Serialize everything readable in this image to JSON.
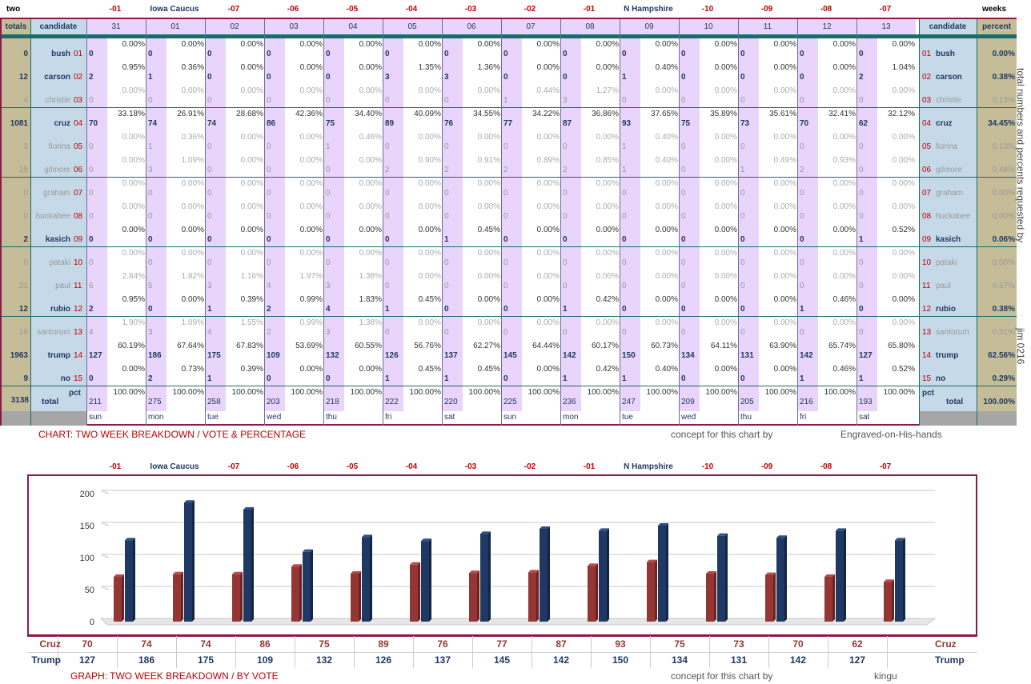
{
  "top_left": "two",
  "top_right": "weeks",
  "col_header_labels": [
    "-01",
    "Iowa Caucus",
    "-07",
    "-06",
    "-05",
    "-04",
    "-03",
    "-02",
    "-01",
    "N Hampshire",
    "-10",
    "-09",
    "-08",
    "-07"
  ],
  "header": {
    "totals": "totals",
    "candidate": "candidate",
    "days": [
      "31",
      "01",
      "02",
      "03",
      "04",
      "05",
      "06",
      "07",
      "08",
      "09",
      "10",
      "11",
      "12",
      "13"
    ],
    "candidate_r": "candidate",
    "percent": "percent"
  },
  "candidates": [
    {
      "name": "bush",
      "num": "01",
      "total": "0",
      "pct": "0.00%",
      "dim": false,
      "counts": [
        "0",
        "0",
        "0",
        "0",
        "0",
        "0",
        "0",
        "0",
        "0",
        "0",
        "0",
        "0",
        "0",
        "0"
      ],
      "pcts": [
        "0.00%",
        "0.00%",
        "0.00%",
        "0.00%",
        "0.00%",
        "0.00%",
        "0.00%",
        "0.00%",
        "0.00%",
        "0.00%",
        "0.00%",
        "0.00%",
        "0.00%",
        "0.00%"
      ]
    },
    {
      "name": "carson",
      "num": "02",
      "total": "12",
      "pct": "0.38%",
      "dim": false,
      "counts": [
        "2",
        "1",
        "0",
        "0",
        "0",
        "3",
        "3",
        "0",
        "0",
        "1",
        "0",
        "0",
        "0",
        "2"
      ],
      "pcts": [
        "0.95%",
        "0.36%",
        "0.00%",
        "0.00%",
        "0.00%",
        "1.35%",
        "1.36%",
        "0.00%",
        "0.00%",
        "0.40%",
        "0.00%",
        "0.00%",
        "0.00%",
        "1.04%"
      ]
    },
    {
      "name": "christie",
      "num": "03",
      "total": "4",
      "pct": "0.13%",
      "dim": true,
      "counts": [
        "0",
        "0",
        "0",
        "0",
        "0",
        "0",
        "0",
        "1",
        "3",
        "0",
        "0",
        "0",
        "0",
        "0"
      ],
      "pcts": [
        "0.00%",
        "0.00%",
        "0.00%",
        "0.00%",
        "0.00%",
        "0.00%",
        "0.00%",
        "0.44%",
        "1.27%",
        "0.00%",
        "0.00%",
        "0.00%",
        "0.00%",
        "0.00%"
      ]
    },
    {
      "name": "cruz",
      "num": "04",
      "total": "1081",
      "pct": "34.45%",
      "dim": false,
      "counts": [
        "70",
        "74",
        "74",
        "86",
        "75",
        "89",
        "76",
        "77",
        "87",
        "93",
        "75",
        "73",
        "70",
        "62"
      ],
      "pcts": [
        "33.18%",
        "26.91%",
        "28.68%",
        "42.36%",
        "34.40%",
        "40.09%",
        "34.55%",
        "34.22%",
        "36.86%",
        "37.65%",
        "35.89%",
        "35.61%",
        "32.41%",
        "32.12%"
      ]
    },
    {
      "name": "fiorina",
      "num": "05",
      "total": "3",
      "pct": "0.10%",
      "dim": true,
      "counts": [
        "0",
        "1",
        "0",
        "0",
        "1",
        "0",
        "0",
        "0",
        "0",
        "1",
        "0",
        "0",
        "0",
        "0"
      ],
      "pcts": [
        "0.00%",
        "0.36%",
        "0.00%",
        "0.00%",
        "0.46%",
        "0.00%",
        "0.00%",
        "0.00%",
        "0.00%",
        "0.40%",
        "0.00%",
        "0.00%",
        "0.00%",
        "0.00%"
      ]
    },
    {
      "name": "gilmore",
      "num": "06",
      "total": "15",
      "pct": "0.48%",
      "dim": true,
      "counts": [
        "0",
        "3",
        "0",
        "0",
        "0",
        "2",
        "2",
        "2",
        "2",
        "1",
        "0",
        "1",
        "2",
        "0"
      ],
      "pcts": [
        "0.00%",
        "1.09%",
        "0.00%",
        "0.00%",
        "0.00%",
        "0.90%",
        "0.91%",
        "0.89%",
        "0.85%",
        "0.40%",
        "0.00%",
        "0.49%",
        "0.93%",
        "0.00%"
      ]
    },
    {
      "name": "graham",
      "num": "07",
      "total": "0",
      "pct": "0.00%",
      "dim": true,
      "counts": [
        "0",
        "0",
        "0",
        "0",
        "0",
        "0",
        "0",
        "0",
        "0",
        "0",
        "0",
        "0",
        "0",
        "0"
      ],
      "pcts": [
        "0.00%",
        "0.00%",
        "0.00%",
        "0.00%",
        "0.00%",
        "0.00%",
        "0.00%",
        "0.00%",
        "0.00%",
        "0.00%",
        "0.00%",
        "0.00%",
        "0.00%",
        "0.00%"
      ]
    },
    {
      "name": "huckabee",
      "num": "08",
      "total": "0",
      "pct": "0.00%",
      "dim": true,
      "counts": [
        "0",
        "0",
        "0",
        "0",
        "0",
        "0",
        "0",
        "0",
        "0",
        "0",
        "0",
        "0",
        "0",
        "0"
      ],
      "pcts": [
        "0.00%",
        "0.00%",
        "0.00%",
        "0.00%",
        "0.00%",
        "0.00%",
        "0.00%",
        "0.00%",
        "0.00%",
        "0.00%",
        "0.00%",
        "0.00%",
        "0.00%",
        "0.00%"
      ]
    },
    {
      "name": "kasich",
      "num": "09",
      "total": "2",
      "pct": "0.06%",
      "dim": false,
      "counts": [
        "0",
        "0",
        "0",
        "0",
        "0",
        "0",
        "1",
        "0",
        "0",
        "0",
        "0",
        "0",
        "0",
        "1"
      ],
      "pcts": [
        "0.00%",
        "0.00%",
        "0.00%",
        "0.00%",
        "0.00%",
        "0.00%",
        "0.45%",
        "0.00%",
        "0.00%",
        "0.00%",
        "0.00%",
        "0.00%",
        "0.00%",
        "0.52%"
      ]
    },
    {
      "name": "pataki",
      "num": "10",
      "total": "0",
      "pct": "0.00%",
      "dim": true,
      "counts": [
        "0",
        "0",
        "0",
        "0",
        "0",
        "0",
        "0",
        "0",
        "0",
        "0",
        "0",
        "0",
        "0",
        "0"
      ],
      "pcts": [
        "0.00%",
        "0.00%",
        "0.00%",
        "0.00%",
        "0.00%",
        "0.00%",
        "0.00%",
        "0.00%",
        "0.00%",
        "0.00%",
        "0.00%",
        "0.00%",
        "0.00%",
        "0.00%"
      ]
    },
    {
      "name": "paul",
      "num": "11",
      "total": "21",
      "pct": "0.67%",
      "dim": true,
      "counts": [
        "6",
        "5",
        "3",
        "4",
        "3",
        "0",
        "0",
        "0",
        "0",
        "0",
        "0",
        "0",
        "0",
        "0"
      ],
      "pcts": [
        "2.84%",
        "1.82%",
        "1.16%",
        "1.97%",
        "1.38%",
        "0.00%",
        "0.00%",
        "0.00%",
        "0.00%",
        "0.00%",
        "0.00%",
        "0.00%",
        "0.00%",
        "0.00%"
      ]
    },
    {
      "name": "rubio",
      "num": "12",
      "total": "12",
      "pct": "0.38%",
      "dim": false,
      "counts": [
        "2",
        "0",
        "1",
        "2",
        "4",
        "1",
        "0",
        "0",
        "1",
        "0",
        "0",
        "0",
        "1",
        "0"
      ],
      "pcts": [
        "0.95%",
        "0.00%",
        "0.39%",
        "0.99%",
        "1.83%",
        "0.45%",
        "0.00%",
        "0.00%",
        "0.42%",
        "0.00%",
        "0.00%",
        "0.00%",
        "0.46%",
        "0.00%"
      ]
    },
    {
      "name": "santorum",
      "num": "13",
      "total": "16",
      "pct": "0.51%",
      "dim": true,
      "counts": [
        "4",
        "3",
        "4",
        "2",
        "3",
        "0",
        "0",
        "0",
        "0",
        "0",
        "0",
        "0",
        "0",
        "0"
      ],
      "pcts": [
        "1.90%",
        "1.09%",
        "1.55%",
        "0.99%",
        "1.38%",
        "0.00%",
        "0.00%",
        "0.00%",
        "0.00%",
        "0.00%",
        "0.00%",
        "0.00%",
        "0.00%",
        "0.00%"
      ]
    },
    {
      "name": "trump",
      "num": "14",
      "total": "1963",
      "pct": "62.56%",
      "dim": false,
      "counts": [
        "127",
        "186",
        "175",
        "109",
        "132",
        "126",
        "137",
        "145",
        "142",
        "150",
        "134",
        "131",
        "142",
        "127"
      ],
      "pcts": [
        "60.19%",
        "67.64%",
        "67.83%",
        "53.69%",
        "60.55%",
        "56.76%",
        "62.27%",
        "64.44%",
        "60.17%",
        "60.73%",
        "64.11%",
        "63.90%",
        "65.74%",
        "65.80%"
      ]
    },
    {
      "name": "no",
      "num": "15",
      "total": "9",
      "pct": "0.29%",
      "dim": false,
      "counts": [
        "0",
        "2",
        "1",
        "0",
        "0",
        "1",
        "1",
        "0",
        "1",
        "1",
        "0",
        "0",
        "1",
        "1"
      ],
      "pcts": [
        "0.00%",
        "0.73%",
        "0.39%",
        "0.00%",
        "0.00%",
        "0.45%",
        "0.45%",
        "0.00%",
        "0.42%",
        "0.40%",
        "0.00%",
        "0.00%",
        "0.46%",
        "0.52%"
      ]
    }
  ],
  "totals_row": {
    "grand": "3138",
    "label": "total",
    "pct_label": "pct",
    "pct_label_r": "pct",
    "label_r": "total",
    "percent": "100.00%",
    "counts": [
      "211",
      "275",
      "258",
      "203",
      "218",
      "222",
      "220",
      "225",
      "236",
      "247",
      "209",
      "205",
      "216",
      "193"
    ],
    "pcts": [
      "100.00%",
      "100.00%",
      "100.00%",
      "100.00%",
      "100.00%",
      "100.00%",
      "100.00%",
      "100.00%",
      "100.00%",
      "100.00%",
      "100.00%",
      "100.00%",
      "100.00%",
      "100.00%"
    ]
  },
  "weekdays": [
    "sun",
    "mon",
    "tue",
    "wed",
    "thu",
    "fri",
    "sat",
    "sun",
    "mon",
    "tue",
    "wed",
    "thu",
    "fri",
    "sat"
  ],
  "caption1": "CHART: TWO WEEK BREAKDOWN / VOTE & PERCENTAGE",
  "concept1": "concept for this chart by",
  "author1": "Engraved-on-His-hands",
  "side_note1": "total numbers and percents requested by",
  "side_note2": "jim 0216",
  "caption2": "GRAPH: TWO WEEK BREAKDOWN / BY VOTE",
  "concept2": "concept for this chart by",
  "author2": "kingu",
  "colors": {
    "cruz": "#943634",
    "trump": "#1f3864",
    "purple": "#e9d5fb",
    "blue": "#c5d9e8",
    "tan": "#c4bd97",
    "teal": "#1a6b6b",
    "red": "#c00000"
  },
  "chart_data": {
    "type": "bar",
    "categories": [
      "-01",
      "Iowa Caucus",
      "-07",
      "-06",
      "-05",
      "-04",
      "-03",
      "-02",
      "-01",
      "N Hampshire",
      "-10",
      "-09",
      "-08",
      "-07"
    ],
    "series": [
      {
        "name": "Cruz",
        "values": [
          70,
          74,
          74,
          86,
          75,
          89,
          76,
          77,
          87,
          93,
          75,
          73,
          70,
          62
        ],
        "color": "#943634"
      },
      {
        "name": "Trump",
        "values": [
          127,
          186,
          175,
          109,
          132,
          126,
          137,
          145,
          142,
          150,
          134,
          131,
          142,
          127
        ],
        "color": "#1f3864"
      }
    ],
    "yticks": [
      0,
      50,
      100,
      150,
      200
    ],
    "ylim": [
      0,
      200
    ],
    "grid": true,
    "legend": "table-below"
  }
}
